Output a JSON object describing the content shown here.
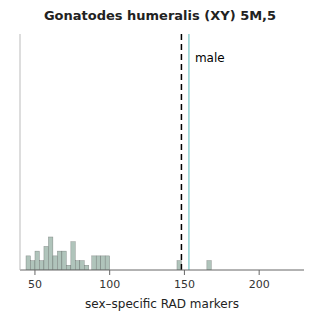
{
  "chart_data": {
    "type": "bar",
    "title": "Gonatodes humeralis (XY) 5M,5",
    "xlabel": "sex–specific RAD markers",
    "x": [
      45.5,
      48.5,
      51.5,
      54.5,
      57.5,
      60.5,
      63.5,
      66.5,
      69.5,
      72.5,
      75.5,
      78.5,
      81.5,
      84.5,
      89.5,
      92.5,
      95.5,
      98.5,
      146.5,
      166.5
    ],
    "widths": [
      3,
      3,
      3,
      3,
      3,
      3,
      3,
      3,
      3,
      3,
      3,
      3,
      3,
      3,
      3,
      3,
      3,
      3,
      3,
      3
    ],
    "values": [
      3,
      2,
      4,
      2,
      5,
      7,
      3,
      4,
      4,
      1,
      6,
      2,
      2,
      1,
      3,
      3,
      3,
      3,
      2,
      2
    ],
    "color": "#b0c4bb",
    "vlines": [
      {
        "x": 153,
        "color": "#90d0d0"
      },
      {
        "x": 148,
        "color": "#000000",
        "line_style": "dashed"
      }
    ],
    "annotations": [
      {
        "text": "male",
        "x": 157,
        "y": 46
      }
    ],
    "xlim": [
      40,
      230
    ],
    "xticks": [
      50,
      100,
      150,
      200
    ],
    "ylim": [
      0,
      50
    ],
    "tick_labels": "x"
  }
}
